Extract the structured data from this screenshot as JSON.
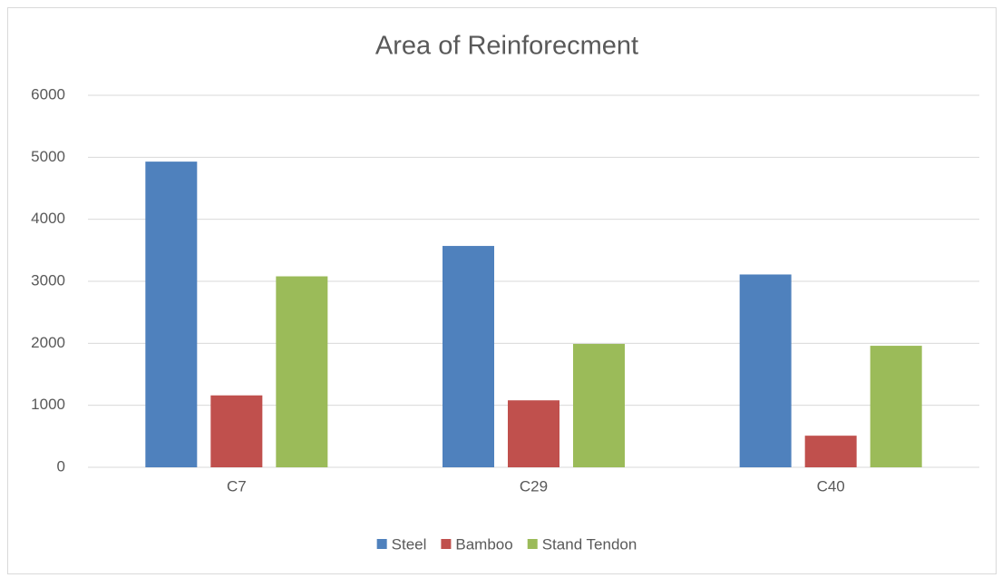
{
  "chart_data": {
    "type": "bar",
    "title": "Area of Reinforecment",
    "categories": [
      "C7",
      "C29",
      "C40"
    ],
    "series": [
      {
        "name": "Steel",
        "color": "#4f81bd",
        "values": [
          4930,
          3570,
          3110
        ]
      },
      {
        "name": "Bamboo",
        "color": "#c0504d",
        "values": [
          1160,
          1080,
          510
        ]
      },
      {
        "name": "Stand Tendon",
        "color": "#9bbb59",
        "values": [
          3080,
          1990,
          1960
        ]
      }
    ],
    "ylim": [
      0,
      6000
    ],
    "yticks": [
      0,
      1000,
      2000,
      3000,
      4000,
      5000,
      6000
    ],
    "grid": true,
    "legend": "bottom"
  }
}
